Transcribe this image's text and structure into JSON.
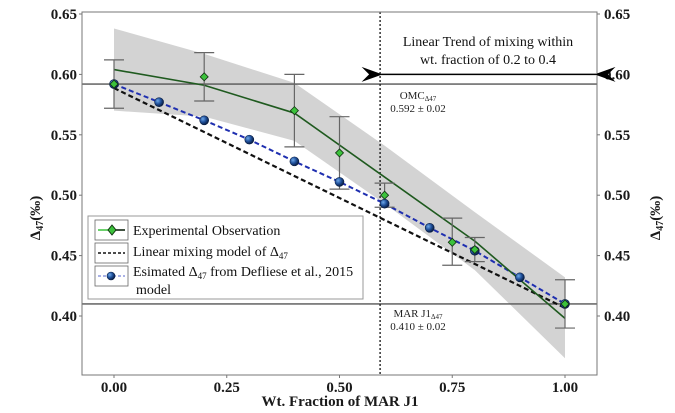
{
  "chart_data": {
    "type": "line",
    "xlabel": "Wt. Fraction of MAR J1",
    "ylabel": "Δ47(‰)",
    "ylabel_main": "Δ",
    "ylabel_sub": "47",
    "ylabel_unit": "(‰)",
    "ylabel_right": "Δ47(‰)",
    "xlim": [
      -0.07,
      1.07
    ],
    "ylim": [
      0.35,
      0.65
    ],
    "x_ticks": [
      0.0,
      0.25,
      0.5,
      0.75,
      1.0
    ],
    "x_tick_labels": [
      "0.00",
      "0.25",
      "0.50",
      "0.75",
      "1.00"
    ],
    "y_ticks": [
      0.4,
      0.45,
      0.5,
      0.55,
      0.6,
      0.65
    ],
    "y_tick_labels": [
      "0.40",
      "0.45",
      "0.50",
      "0.55",
      "0.60",
      "0.65"
    ],
    "grid": false,
    "legend_position": "lower-left",
    "series": [
      {
        "name": "Experimental Observation",
        "kind": "points-with-errorbars",
        "color": "#3cc23c",
        "x": [
          0.0,
          0.2,
          0.4,
          0.5,
          0.6,
          0.75,
          0.8,
          1.0
        ],
        "y": [
          0.592,
          0.598,
          0.57,
          0.535,
          0.5,
          0.461,
          0.455,
          0.41
        ],
        "err_low": [
          0.572,
          0.578,
          0.54,
          0.505,
          0.49,
          0.442,
          0.445,
          0.39
        ],
        "err_high": [
          0.612,
          0.618,
          0.6,
          0.565,
          0.51,
          0.481,
          0.465,
          0.43
        ]
      },
      {
        "name": "Linear mixing model of Δ47",
        "kind": "dashed-line",
        "color": "#111111",
        "x": [
          0.0,
          1.0
        ],
        "y": [
          0.592,
          0.41
        ]
      },
      {
        "name": "Esimated Δ47 from Defliese et al., 2015 model",
        "kind": "dashed-line-with-points",
        "color": "#1f2fb0",
        "marker_color": "#1e4f9a",
        "x": [
          0.0,
          0.1,
          0.2,
          0.3,
          0.4,
          0.5,
          0.6,
          0.7,
          0.8,
          0.9,
          1.0
        ],
        "y": [
          0.592,
          0.577,
          0.562,
          0.546,
          0.528,
          0.511,
          0.493,
          0.473,
          0.454,
          0.432,
          0.41
        ]
      },
      {
        "name": "Fitted trend",
        "kind": "smooth-line",
        "color": "#1f5a1f",
        "x": [
          0.0,
          0.2,
          0.4,
          0.6,
          0.8,
          1.0
        ],
        "y": [
          0.604,
          0.591,
          0.568,
          0.515,
          0.462,
          0.398
        ]
      },
      {
        "name": "Confidence band",
        "kind": "band",
        "color": "#d3d3d3",
        "x": [
          0.0,
          0.2,
          0.4,
          0.6,
          0.8,
          1.0
        ],
        "upper": [
          0.638,
          0.617,
          0.593,
          0.541,
          0.486,
          0.432
        ],
        "lower": [
          0.57,
          0.565,
          0.545,
          0.493,
          0.438,
          0.365
        ]
      }
    ],
    "reference_lines": [
      {
        "orientation": "horizontal",
        "y": 0.592,
        "label_name": "OMC",
        "label_sub": "Δ47",
        "label_value": "0.592 ± 0.02"
      },
      {
        "orientation": "horizontal",
        "y": 0.41,
        "label_name": "MAR J1",
        "label_sub": "Δ47",
        "label_value": "0.410 ± 0.02"
      },
      {
        "orientation": "vertical",
        "x": 0.59,
        "style": "dotted"
      }
    ],
    "annotations": {
      "arrow_text_line1": "Linear Trend of mixing within",
      "arrow_text_line2": "wt. fraction of 0.2 to 0.4",
      "arrow_y": 0.6
    },
    "legend": [
      {
        "label": "Experimental Observation"
      },
      {
        "label_main": "Linear mixing model of Δ",
        "label_sub": "47"
      },
      {
        "label_main": "Esimated Δ",
        "label_sub": "47",
        "label_rest": " from Defliese et al., 2015",
        "label_line2": "model"
      }
    ]
  }
}
